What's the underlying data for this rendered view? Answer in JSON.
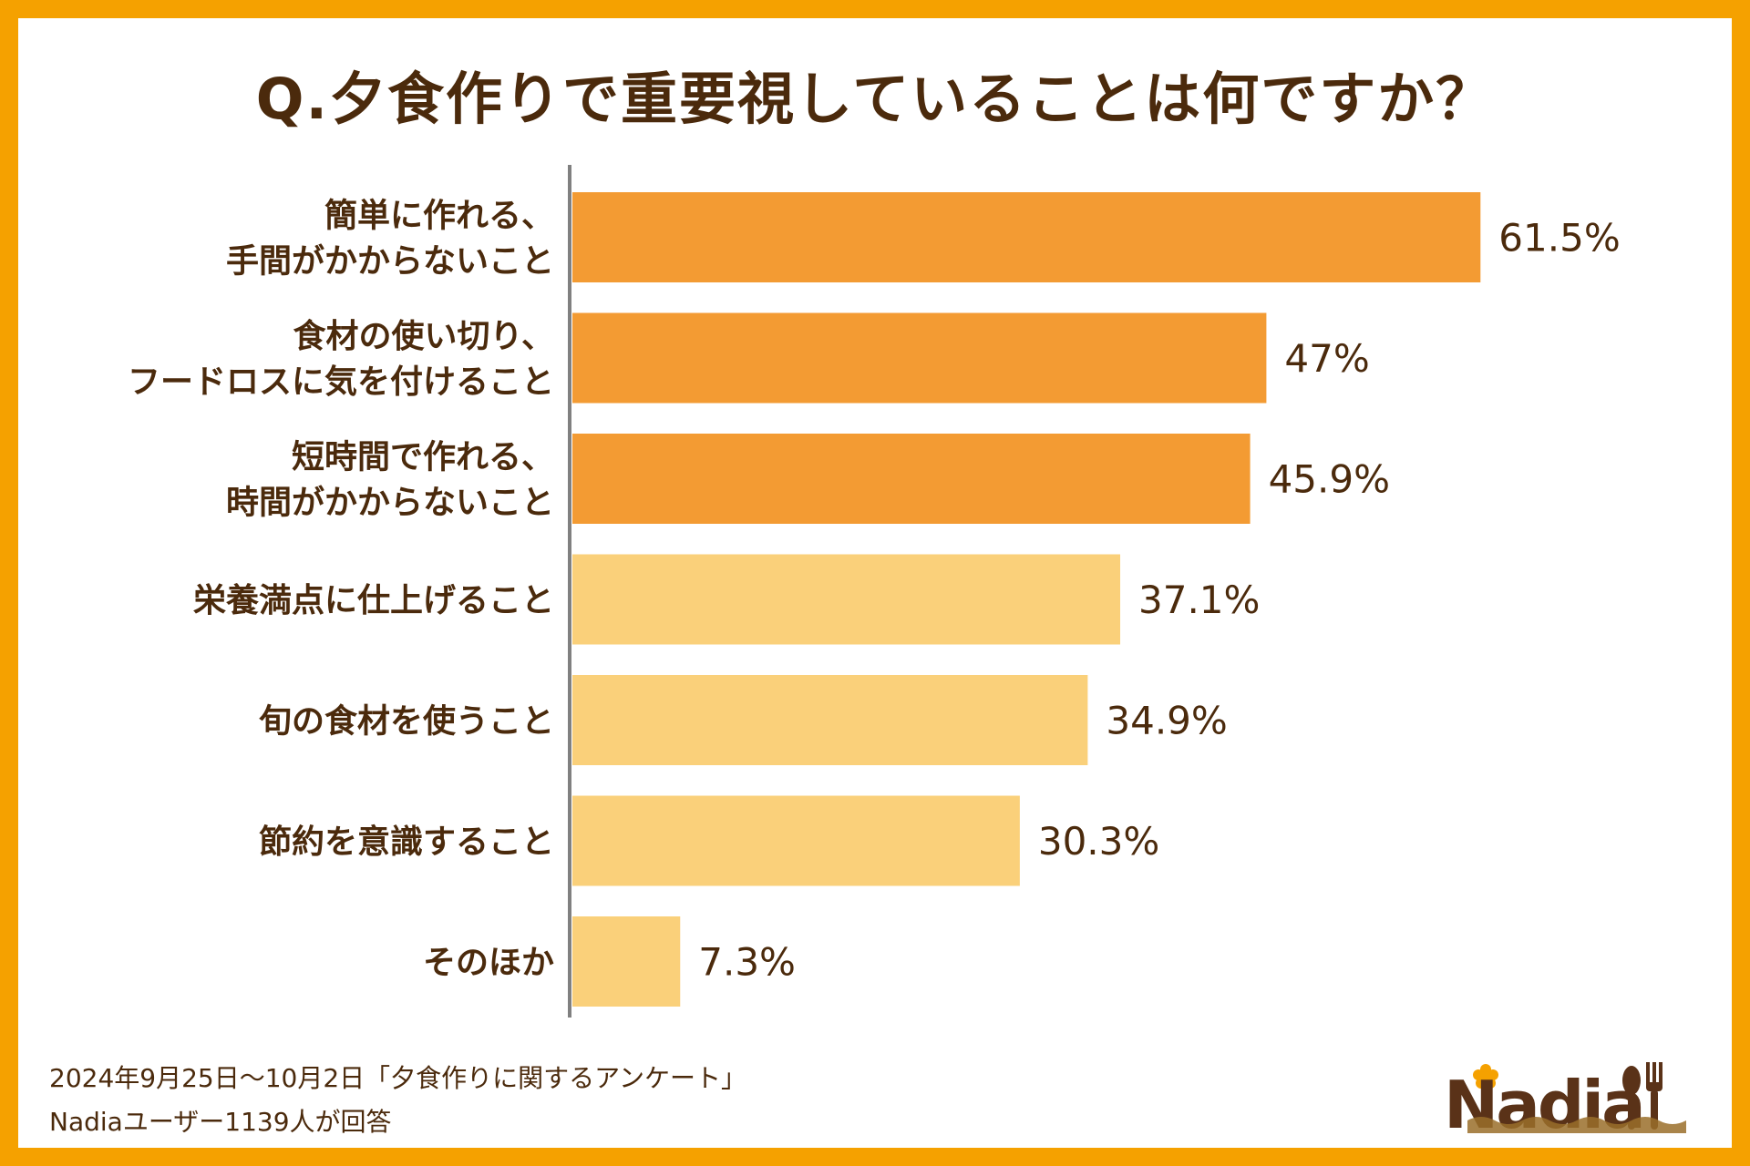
{
  "chart_data": {
    "type": "bar",
    "orientation": "horizontal",
    "title": "Q.夕食作りで重要視していることは何ですか？",
    "categories": [
      [
        "簡単に作れる、",
        "手間がかからないこと"
      ],
      [
        "食材の使い切り、",
        "フードロスに気を付けること"
      ],
      [
        "短時間で作れる、",
        "時間がかからないこと"
      ],
      [
        "栄養満点に仕上げること"
      ],
      [
        "旬の食材を使うこと"
      ],
      [
        "節約を意識すること"
      ],
      [
        "そのほか"
      ]
    ],
    "values": [
      61.5,
      47,
      45.9,
      37.1,
      34.9,
      30.3,
      7.3
    ],
    "value_labels": [
      "61.5%",
      "47%",
      "45.9%",
      "37.1%",
      "34.9%",
      "30.3%",
      "7.3%"
    ],
    "highlighted_count": 3,
    "colors": {
      "highlight": "#F39B33",
      "normal": "#FAD07A",
      "axis": "#808080",
      "text": "#4B2A0C"
    },
    "grid": false
  },
  "footer": {
    "line1": "2024年9月25日～10月2日「夕食作りに関するアンケート」",
    "line2": "Nadiaユーザー1139人が回答"
  },
  "logo": {
    "text": "Nadia",
    "icons": [
      "flower-icon",
      "spoon-icon",
      "fork-icon"
    ]
  },
  "frame_color": "#F5A100"
}
